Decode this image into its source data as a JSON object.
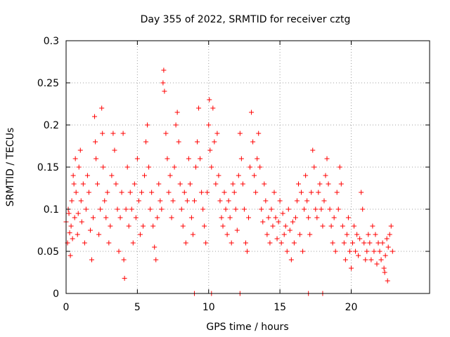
{
  "chart_data": {
    "type": "scatter",
    "title": "Day 355 of 2022, SRMTID for receiver cztg",
    "xlabel": "GPS time / hours",
    "ylabel": "SRMTID / TECUs",
    "xlim": [
      0,
      25.5
    ],
    "ylim": [
      0,
      0.3
    ],
    "x_ticks": [
      0,
      5,
      10,
      15,
      20
    ],
    "x_tick_labels": [
      "0",
      "5",
      "10",
      "15",
      "20"
    ],
    "y_ticks": [
      0,
      0.05,
      0.1,
      0.15,
      0.2,
      0.25,
      0.3
    ],
    "y_tick_labels": [
      "0",
      "0.05",
      "0.1",
      "0.15",
      "0.2",
      "0.25",
      "0.3"
    ],
    "grid": true,
    "marker": "+",
    "color": "#ff0000",
    "series": [
      {
        "name": "SRMTID",
        "points": [
          [
            0.0,
            0.085
          ],
          [
            0.1,
            0.06
          ],
          [
            0.15,
            0.1
          ],
          [
            0.2,
            0.095
          ],
          [
            0.25,
            0.072
          ],
          [
            0.3,
            0.045
          ],
          [
            0.35,
            0.08
          ],
          [
            0.4,
            0.11
          ],
          [
            0.45,
            0.065
          ],
          [
            0.5,
            0.14
          ],
          [
            0.55,
            0.13
          ],
          [
            0.6,
            0.09
          ],
          [
            0.65,
            0.16
          ],
          [
            0.7,
            0.12
          ],
          [
            0.8,
            0.07
          ],
          [
            0.85,
            0.095
          ],
          [
            0.9,
            0.15
          ],
          [
            1.0,
            0.17
          ],
          [
            1.05,
            0.11
          ],
          [
            1.1,
            0.085
          ],
          [
            1.2,
            0.13
          ],
          [
            1.3,
            0.06
          ],
          [
            1.4,
            0.1
          ],
          [
            1.5,
            0.14
          ],
          [
            1.6,
            0.12
          ],
          [
            1.7,
            0.075
          ],
          [
            1.8,
            0.04
          ],
          [
            1.9,
            0.09
          ],
          [
            2.0,
            0.21
          ],
          [
            2.05,
            0.18
          ],
          [
            2.1,
            0.16
          ],
          [
            2.2,
            0.13
          ],
          [
            2.3,
            0.07
          ],
          [
            2.4,
            0.1
          ],
          [
            2.5,
            0.22
          ],
          [
            2.55,
            0.19
          ],
          [
            2.6,
            0.15
          ],
          [
            2.7,
            0.11
          ],
          [
            2.8,
            0.09
          ],
          [
            2.9,
            0.12
          ],
          [
            3.0,
            0.06
          ],
          [
            3.1,
            0.08
          ],
          [
            3.2,
            0.14
          ],
          [
            3.3,
            0.19
          ],
          [
            3.4,
            0.17
          ],
          [
            3.5,
            0.13
          ],
          [
            3.6,
            0.1
          ],
          [
            3.7,
            0.05
          ],
          [
            3.8,
            0.09
          ],
          [
            3.9,
            0.12
          ],
          [
            4.0,
            0.19
          ],
          [
            4.05,
            0.04
          ],
          [
            4.1,
            0.018
          ],
          [
            4.2,
            0.1
          ],
          [
            4.3,
            0.15
          ],
          [
            4.4,
            0.08
          ],
          [
            4.5,
            0.12
          ],
          [
            4.6,
            0.1
          ],
          [
            4.7,
            0.06
          ],
          [
            4.8,
            0.13
          ],
          [
            4.9,
            0.09
          ],
          [
            5.0,
            0.16
          ],
          [
            5.1,
            0.11
          ],
          [
            5.2,
            0.07
          ],
          [
            5.3,
            0.12
          ],
          [
            5.4,
            0.08
          ],
          [
            5.5,
            0.14
          ],
          [
            5.6,
            0.18
          ],
          [
            5.7,
            0.2
          ],
          [
            5.8,
            0.15
          ],
          [
            5.9,
            0.1
          ],
          [
            6.0,
            0.12
          ],
          [
            6.1,
            0.08
          ],
          [
            6.2,
            0.055
          ],
          [
            6.3,
            0.04
          ],
          [
            6.4,
            0.09
          ],
          [
            6.5,
            0.13
          ],
          [
            6.6,
            0.11
          ],
          [
            6.7,
            0.1
          ],
          [
            6.8,
            0.25
          ],
          [
            6.85,
            0.265
          ],
          [
            6.9,
            0.24
          ],
          [
            7.0,
            0.19
          ],
          [
            7.1,
            0.16
          ],
          [
            7.2,
            0.12
          ],
          [
            7.3,
            0.14
          ],
          [
            7.4,
            0.09
          ],
          [
            7.5,
            0.11
          ],
          [
            7.6,
            0.15
          ],
          [
            7.7,
            0.2
          ],
          [
            7.8,
            0.215
          ],
          [
            7.9,
            0.18
          ],
          [
            8.0,
            0.13
          ],
          [
            8.1,
            0.1
          ],
          [
            8.2,
            0.08
          ],
          [
            8.3,
            0.12
          ],
          [
            8.4,
            0.06
          ],
          [
            8.5,
            0.11
          ],
          [
            8.6,
            0.16
          ],
          [
            8.7,
            0.13
          ],
          [
            8.8,
            0.09
          ],
          [
            8.9,
            0.07
          ],
          [
            9.0,
            0.11
          ],
          [
            9.1,
            0.15
          ],
          [
            9.2,
            0.18
          ],
          [
            9.3,
            0.22
          ],
          [
            9.4,
            0.16
          ],
          [
            9.5,
            0.12
          ],
          [
            9.6,
            0.1
          ],
          [
            9.7,
            0.08
          ],
          [
            9.8,
            0.06
          ],
          [
            9.9,
            0.12
          ],
          [
            10.0,
            0.2
          ],
          [
            10.05,
            0.23
          ],
          [
            10.1,
            0.17
          ],
          [
            10.2,
            0.15
          ],
          [
            10.3,
            0.22
          ],
          [
            10.4,
            0.18
          ],
          [
            10.5,
            0.13
          ],
          [
            10.6,
            0.19
          ],
          [
            10.7,
            0.14
          ],
          [
            10.8,
            0.11
          ],
          [
            10.9,
            0.09
          ],
          [
            11.0,
            0.08
          ],
          [
            11.1,
            0.12
          ],
          [
            11.2,
            0.1
          ],
          [
            11.3,
            0.07
          ],
          [
            11.4,
            0.11
          ],
          [
            11.5,
            0.09
          ],
          [
            11.6,
            0.06
          ],
          [
            11.7,
            0.13
          ],
          [
            11.8,
            0.12
          ],
          [
            11.9,
            0.1
          ],
          [
            12.0,
            0.075
          ],
          [
            12.1,
            0.14
          ],
          [
            12.2,
            0.19
          ],
          [
            12.3,
            0.16
          ],
          [
            12.4,
            0.13
          ],
          [
            12.5,
            0.1
          ],
          [
            12.6,
            0.06
          ],
          [
            12.7,
            0.05
          ],
          [
            12.8,
            0.09
          ],
          [
            12.9,
            0.15
          ],
          [
            13.0,
            0.215
          ],
          [
            13.1,
            0.18
          ],
          [
            13.2,
            0.14
          ],
          [
            13.3,
            0.12
          ],
          [
            13.4,
            0.16
          ],
          [
            13.5,
            0.19
          ],
          [
            13.6,
            0.15
          ],
          [
            13.7,
            0.1
          ],
          [
            13.8,
            0.085
          ],
          [
            13.9,
            0.13
          ],
          [
            14.0,
            0.11
          ],
          [
            14.1,
            0.07
          ],
          [
            14.2,
            0.09
          ],
          [
            14.3,
            0.06
          ],
          [
            14.4,
            0.1
          ],
          [
            14.5,
            0.08
          ],
          [
            14.6,
            0.12
          ],
          [
            14.7,
            0.09
          ],
          [
            14.8,
            0.065
          ],
          [
            14.9,
            0.085
          ],
          [
            15.0,
            0.11
          ],
          [
            15.1,
            0.06
          ],
          [
            15.2,
            0.095
          ],
          [
            15.3,
            0.07
          ],
          [
            15.4,
            0.08
          ],
          [
            15.5,
            0.05
          ],
          [
            15.6,
            0.1
          ],
          [
            15.7,
            0.075
          ],
          [
            15.8,
            0.04
          ],
          [
            15.9,
            0.085
          ],
          [
            16.0,
            0.06
          ],
          [
            16.1,
            0.09
          ],
          [
            16.2,
            0.11
          ],
          [
            16.3,
            0.13
          ],
          [
            16.4,
            0.07
          ],
          [
            16.5,
            0.12
          ],
          [
            16.6,
            0.05
          ],
          [
            16.7,
            0.1
          ],
          [
            16.8,
            0.14
          ],
          [
            16.9,
            0.11
          ],
          [
            17.0,
            0.09
          ],
          [
            17.1,
            0.07
          ],
          [
            17.2,
            0.12
          ],
          [
            17.3,
            0.17
          ],
          [
            17.4,
            0.15
          ],
          [
            17.5,
            0.1
          ],
          [
            17.6,
            0.09
          ],
          [
            17.7,
            0.12
          ],
          [
            17.8,
            0.13
          ],
          [
            17.9,
            0.1
          ],
          [
            18.0,
            0.08
          ],
          [
            18.1,
            0.11
          ],
          [
            18.2,
            0.14
          ],
          [
            18.3,
            0.16
          ],
          [
            18.4,
            0.13
          ],
          [
            18.5,
            0.1
          ],
          [
            18.6,
            0.08
          ],
          [
            18.7,
            0.06
          ],
          [
            18.8,
            0.09
          ],
          [
            18.9,
            0.05
          ],
          [
            19.0,
            0.12
          ],
          [
            19.1,
            0.1
          ],
          [
            19.2,
            0.15
          ],
          [
            19.3,
            0.13
          ],
          [
            19.4,
            0.08
          ],
          [
            19.5,
            0.06
          ],
          [
            19.6,
            0.04
          ],
          [
            19.7,
            0.07
          ],
          [
            19.8,
            0.09
          ],
          [
            19.9,
            0.05
          ],
          [
            20.0,
            0.03
          ],
          [
            20.1,
            0.06
          ],
          [
            20.2,
            0.08
          ],
          [
            20.3,
            0.05
          ],
          [
            20.4,
            0.07
          ],
          [
            20.5,
            0.045
          ],
          [
            20.6,
            0.065
          ],
          [
            20.7,
            0.12
          ],
          [
            20.8,
            0.1
          ],
          [
            20.9,
            0.06
          ],
          [
            21.0,
            0.04
          ],
          [
            21.1,
            0.05
          ],
          [
            21.2,
            0.07
          ],
          [
            21.3,
            0.06
          ],
          [
            21.4,
            0.04
          ],
          [
            21.5,
            0.08
          ],
          [
            21.6,
            0.05
          ],
          [
            21.7,
            0.07
          ],
          [
            21.8,
            0.035
          ],
          [
            21.9,
            0.06
          ],
          [
            22.0,
            0.05
          ],
          [
            22.1,
            0.04
          ],
          [
            22.2,
            0.06
          ],
          [
            22.3,
            0.03
          ],
          [
            22.4,
            0.045
          ],
          [
            22.5,
            0.065
          ],
          [
            22.6,
            0.055
          ],
          [
            22.7,
            0.07
          ],
          [
            22.8,
            0.08
          ],
          [
            22.9,
            0.05
          ],
          [
            22.55,
            0.015
          ],
          [
            22.35,
            0.025
          ],
          [
            17.0,
            0.0
          ],
          [
            9.0,
            0.0
          ],
          [
            10.2,
            0.0
          ],
          [
            12.2,
            0.0
          ],
          [
            18.0,
            0.0
          ]
        ]
      }
    ]
  }
}
